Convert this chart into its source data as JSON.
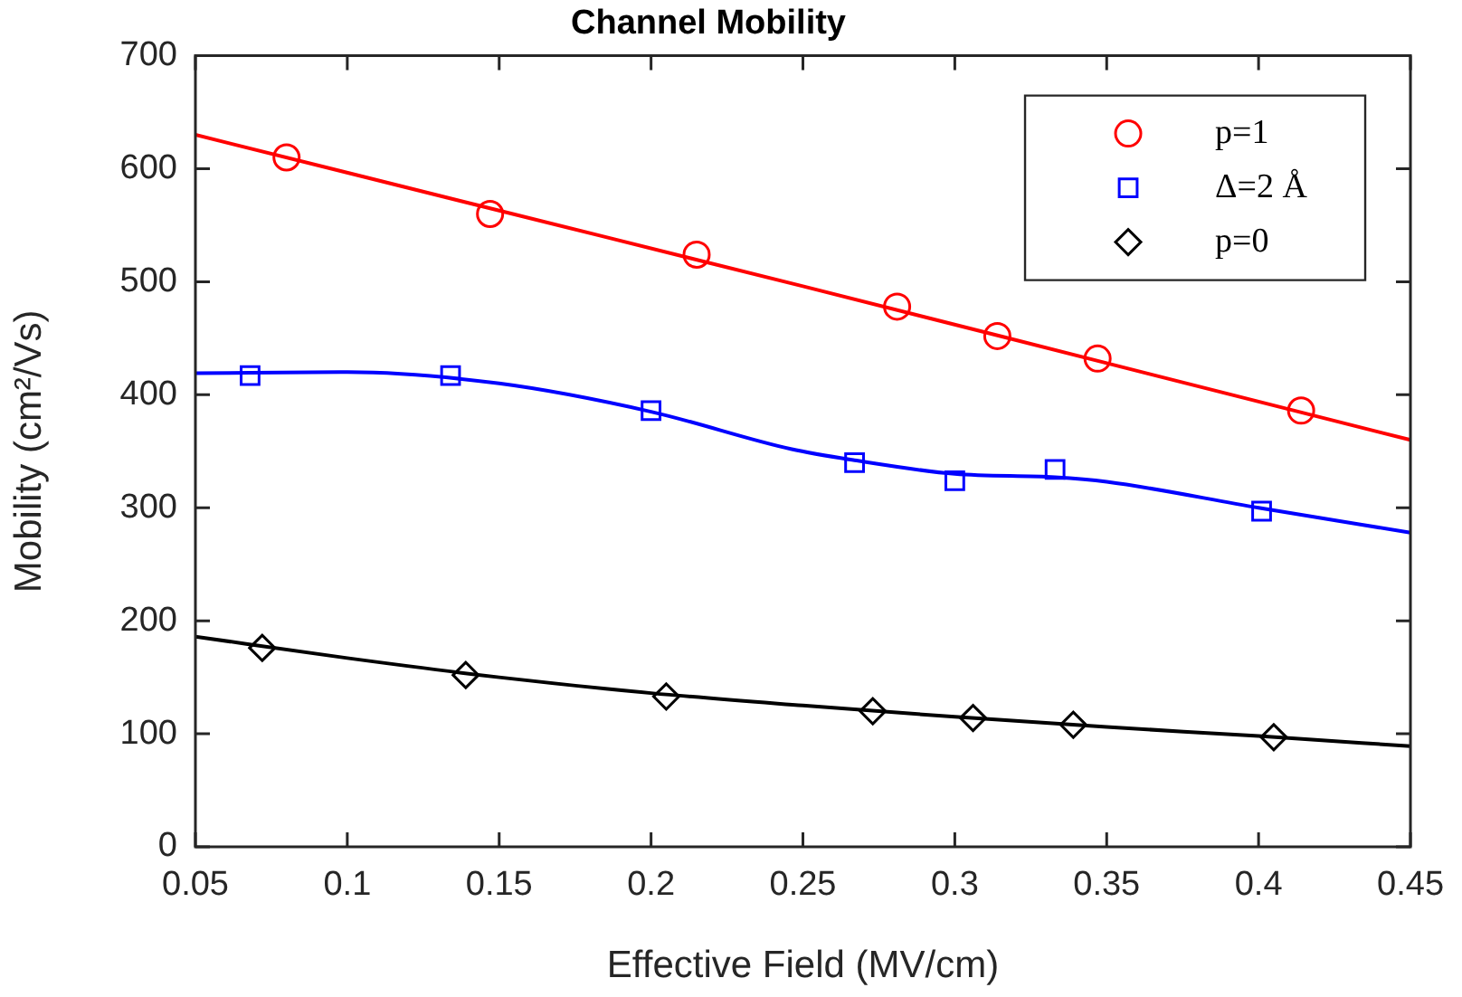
{
  "chart_data": {
    "type": "scatter",
    "title": "Channel Mobility",
    "xlabel": "Effective Field (MV/cm)",
    "ylabel": "Mobility (cm²/Vs)",
    "xlim": [
      0.05,
      0.45
    ],
    "xticks": [
      0.05,
      0.1,
      0.15,
      0.2,
      0.25,
      0.3,
      0.35,
      0.4,
      0.45
    ],
    "ylim": [
      0,
      700
    ],
    "yticks": [
      0,
      100,
      200,
      300,
      400,
      500,
      600,
      700
    ],
    "grid": false,
    "legend": "top right",
    "series": [
      {
        "name": "p=1",
        "marker": "circle",
        "color": "#ff0000",
        "x": [
          0.08,
          0.147,
          0.215,
          0.281,
          0.314,
          0.347,
          0.414
        ],
        "values": [
          610,
          560,
          524,
          478,
          452,
          432,
          386
        ]
      },
      {
        "name": "Δ=2 Å",
        "marker": "square",
        "color": "#0000ff",
        "x": [
          0.068,
          0.134,
          0.2,
          0.267,
          0.3,
          0.333,
          0.401
        ],
        "values": [
          417,
          417,
          386,
          340,
          324,
          334,
          297
        ]
      },
      {
        "name": "p=0",
        "marker": "diamond",
        "color": "#000000",
        "x": [
          0.072,
          0.139,
          0.205,
          0.273,
          0.306,
          0.339,
          0.405
        ],
        "values": [
          176,
          152,
          133,
          120,
          114,
          108,
          97
        ]
      },
      {
        "type": "line",
        "marker": "none",
        "color": "#ff0000",
        "x": [
          0.05,
          0.15,
          0.25,
          0.35,
          0.45
        ],
        "values": [
          630,
          563,
          496,
          428,
          360
        ]
      },
      {
        "type": "line",
        "marker": "none",
        "color": "#0000ff",
        "x": [
          0.05,
          0.1,
          0.15,
          0.2,
          0.246,
          0.267,
          0.3,
          0.333,
          0.35,
          0.4,
          0.45
        ],
        "values": [
          419,
          420,
          410,
          385,
          352,
          342,
          330,
          327,
          323,
          300,
          278
        ]
      },
      {
        "type": "line",
        "marker": "none",
        "color": "#000000",
        "x": [
          0.05,
          0.1,
          0.15,
          0.2,
          0.25,
          0.3,
          0.35,
          0.4,
          0.45
        ],
        "values": [
          186,
          167,
          150,
          136,
          125,
          115,
          106,
          98,
          89
        ]
      }
    ]
  }
}
